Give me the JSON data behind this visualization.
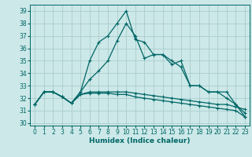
{
  "xlabel": "Humidex (Indice chaleur)",
  "bg_color": "#cce8e8",
  "grid_color": "#aacccc",
  "line_color": "#006666",
  "xlim": [
    -0.5,
    23.5
  ],
  "ylim": [
    29.8,
    39.5
  ],
  "yticks": [
    30,
    31,
    32,
    33,
    34,
    35,
    36,
    37,
    38,
    39
  ],
  "xticks": [
    0,
    1,
    2,
    3,
    4,
    5,
    6,
    7,
    8,
    9,
    10,
    11,
    12,
    13,
    14,
    15,
    16,
    17,
    18,
    19,
    20,
    21,
    22,
    23
  ],
  "series1_y": [
    31.5,
    32.5,
    32.5,
    32.1,
    31.6,
    32.5,
    35.0,
    36.5,
    37.0,
    38.0,
    39.0,
    36.7,
    36.5,
    35.5,
    35.5,
    34.7,
    35.0,
    33.0,
    33.0,
    32.5,
    32.5,
    32.5,
    31.5,
    30.5
  ],
  "series2_y": [
    31.5,
    32.5,
    32.5,
    32.1,
    31.6,
    32.5,
    33.5,
    34.2,
    35.0,
    36.6,
    38.0,
    37.0,
    35.2,
    35.5,
    35.5,
    35.0,
    34.5,
    33.0,
    33.0,
    32.5,
    32.5,
    32.0,
    31.5,
    30.8
  ],
  "series3_y": [
    31.5,
    32.5,
    32.5,
    32.1,
    31.6,
    32.3,
    32.5,
    32.5,
    32.5,
    32.5,
    32.5,
    32.4,
    32.3,
    32.2,
    32.1,
    32.0,
    31.9,
    31.8,
    31.7,
    31.6,
    31.5,
    31.5,
    31.3,
    31.1
  ],
  "series4_y": [
    31.5,
    32.5,
    32.5,
    32.1,
    31.6,
    32.3,
    32.4,
    32.4,
    32.4,
    32.3,
    32.3,
    32.1,
    32.0,
    31.9,
    31.8,
    31.7,
    31.6,
    31.5,
    31.4,
    31.3,
    31.2,
    31.1,
    31.0,
    30.5
  ]
}
